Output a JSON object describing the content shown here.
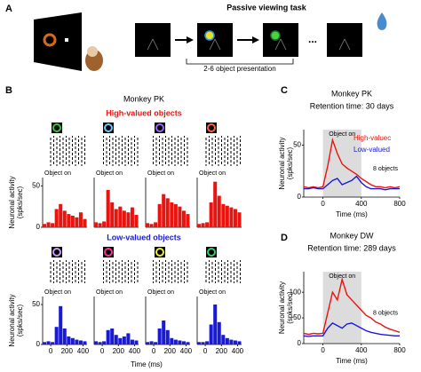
{
  "panel_a": {
    "label": "A",
    "title": "Passive viewing task",
    "annotation": "2-6 object presentation"
  },
  "panel_b": {
    "label": "B",
    "title": "Monkey PK",
    "high_heading": "High-valued objects",
    "low_heading": "Low-valued objects",
    "x_label": "Time (ms)"
  },
  "panel_c": {
    "label": "C"
  },
  "panel_d": {
    "label": "D"
  },
  "chart_data": [
    {
      "type": "histogram",
      "bins": [
        -100,
        -50,
        0,
        50,
        100,
        150,
        200,
        250,
        300,
        350,
        400,
        450
      ],
      "values": [
        4,
        6,
        5,
        22,
        28,
        20,
        16,
        14,
        12,
        18,
        10
      ],
      "color": "#e8140f",
      "xlim": [
        -100,
        450
      ],
      "ylim": [
        0,
        60
      ],
      "yticks": [
        0,
        50
      ],
      "annotation": "Object on",
      "y_label": [
        "Neuronal activity",
        "(spks/sec)"
      ]
    },
    {
      "type": "histogram",
      "bins": [
        -100,
        -50,
        0,
        50,
        100,
        150,
        200,
        250,
        300,
        350,
        400,
        450
      ],
      "values": [
        6,
        5,
        7,
        45,
        30,
        22,
        25,
        20,
        18,
        24,
        15
      ],
      "color": "#e8140f",
      "xlim": [
        -100,
        450
      ],
      "ylim": [
        0,
        60
      ],
      "annotation": "Object on"
    },
    {
      "type": "histogram",
      "bins": [
        -100,
        -50,
        0,
        50,
        100,
        150,
        200,
        250,
        300,
        350,
        400,
        450
      ],
      "values": [
        5,
        4,
        6,
        28,
        40,
        35,
        30,
        28,
        25,
        20,
        16
      ],
      "color": "#e8140f",
      "xlim": [
        -100,
        450
      ],
      "ylim": [
        0,
        60
      ],
      "annotation": "Object on"
    },
    {
      "type": "histogram",
      "bins": [
        -100,
        -50,
        0,
        50,
        100,
        150,
        200,
        250,
        300,
        350,
        400,
        450
      ],
      "values": [
        4,
        5,
        6,
        30,
        55,
        38,
        28,
        26,
        24,
        22,
        18
      ],
      "color": "#e8140f",
      "xlim": [
        -100,
        450
      ],
      "ylim": [
        0,
        60
      ],
      "annotation": "Object on"
    },
    {
      "type": "histogram",
      "bins": [
        -100,
        -50,
        0,
        50,
        100,
        150,
        200,
        250,
        300,
        350,
        400,
        450
      ],
      "values": [
        3,
        4,
        3,
        22,
        48,
        20,
        10,
        8,
        6,
        5,
        4
      ],
      "color": "#1a1ad6",
      "xlim": [
        -100,
        450
      ],
      "ylim": [
        0,
        60
      ],
      "yticks": [
        0,
        50
      ],
      "xticks": [
        0,
        200,
        400
      ],
      "annotation": "Object on",
      "y_label": [
        "Neuronal activity",
        "(spks/sec)"
      ]
    },
    {
      "type": "histogram",
      "bins": [
        -100,
        -50,
        0,
        50,
        100,
        150,
        200,
        250,
        300,
        350,
        400,
        450
      ],
      "values": [
        4,
        3,
        4,
        18,
        20,
        12,
        8,
        10,
        14,
        6,
        5
      ],
      "color": "#1a1ad6",
      "xlim": [
        -100,
        450
      ],
      "ylim": [
        0,
        60
      ],
      "xticks": [
        0,
        200,
        400
      ],
      "annotation": "Object on"
    },
    {
      "type": "histogram",
      "bins": [
        -100,
        -50,
        0,
        50,
        100,
        150,
        200,
        250,
        300,
        350,
        400,
        450
      ],
      "values": [
        3,
        4,
        3,
        20,
        30,
        18,
        8,
        6,
        5,
        4,
        3
      ],
      "color": "#1a1ad6",
      "xlim": [
        -100,
        450
      ],
      "ylim": [
        0,
        60
      ],
      "xticks": [
        0,
        200,
        400
      ],
      "annotation": "Object on"
    },
    {
      "type": "histogram",
      "bins": [
        -100,
        -50,
        0,
        50,
        100,
        150,
        200,
        250,
        300,
        350,
        400,
        450
      ],
      "values": [
        3,
        3,
        4,
        25,
        50,
        28,
        12,
        8,
        6,
        5,
        4
      ],
      "color": "#1a1ad6",
      "xlim": [
        -100,
        450
      ],
      "ylim": [
        0,
        60
      ],
      "xticks": [
        0,
        200,
        400
      ],
      "annotation": "Object on"
    },
    {
      "type": "line",
      "title": "Monkey PK",
      "subtitle": "Retention time: 30 days",
      "x_label": "Time (ms)",
      "y_label": [
        "Neuronal activity",
        "(spks/sec)"
      ],
      "x": [
        -200,
        -150,
        -100,
        -50,
        0,
        50,
        100,
        150,
        200,
        250,
        300,
        350,
        400,
        450,
        500,
        550,
        600,
        650,
        700,
        750,
        800
      ],
      "series": [
        {
          "name": "High-valuec",
          "color": "#e8140f",
          "values": [
            10,
            9,
            10,
            9,
            10,
            30,
            55,
            42,
            32,
            28,
            25,
            22,
            18,
            15,
            12,
            10,
            10,
            9,
            10,
            9,
            10
          ]
        },
        {
          "name": "Low-valued",
          "color": "#1a1ad6",
          "values": [
            8,
            8,
            9,
            8,
            8,
            12,
            16,
            18,
            12,
            14,
            16,
            20,
            14,
            10,
            8,
            8,
            8,
            7,
            8,
            8,
            8
          ]
        }
      ],
      "xlim": [
        -200,
        800
      ],
      "ylim": [
        0,
        65
      ],
      "xticks": [
        0,
        400,
        800
      ],
      "yticks": [
        0,
        50
      ],
      "shade": [
        0,
        400
      ],
      "shade_label": "Object on",
      "note": "8 objects",
      "legend": "upper right"
    },
    {
      "type": "line",
      "title": "Monkey DW",
      "subtitle": "Retention time: 289 days",
      "x_label": "Time (ms)",
      "y_label": [
        "Neuronal activity",
        "(spks/sec)"
      ],
      "x": [
        -200,
        -150,
        -100,
        -50,
        0,
        50,
        100,
        150,
        200,
        250,
        300,
        350,
        400,
        450,
        500,
        550,
        600,
        650,
        700,
        750,
        800
      ],
      "series": [
        {
          "color": "#e8140f",
          "values": [
            20,
            18,
            20,
            19,
            20,
            60,
            100,
            85,
            125,
            95,
            85,
            75,
            65,
            55,
            50,
            42,
            38,
            32,
            28,
            25,
            22
          ]
        },
        {
          "color": "#1a1ad6",
          "values": [
            15,
            14,
            15,
            15,
            15,
            30,
            40,
            35,
            30,
            38,
            40,
            35,
            30,
            25,
            22,
            20,
            18,
            17,
            16,
            15,
            15
          ]
        }
      ],
      "xlim": [
        -200,
        800
      ],
      "ylim": [
        0,
        140
      ],
      "xticks": [
        0,
        400,
        800
      ],
      "yticks": [
        0,
        50,
        100
      ],
      "shade": [
        0,
        400
      ],
      "shade_label": "Object on",
      "note": "8 objects"
    }
  ]
}
